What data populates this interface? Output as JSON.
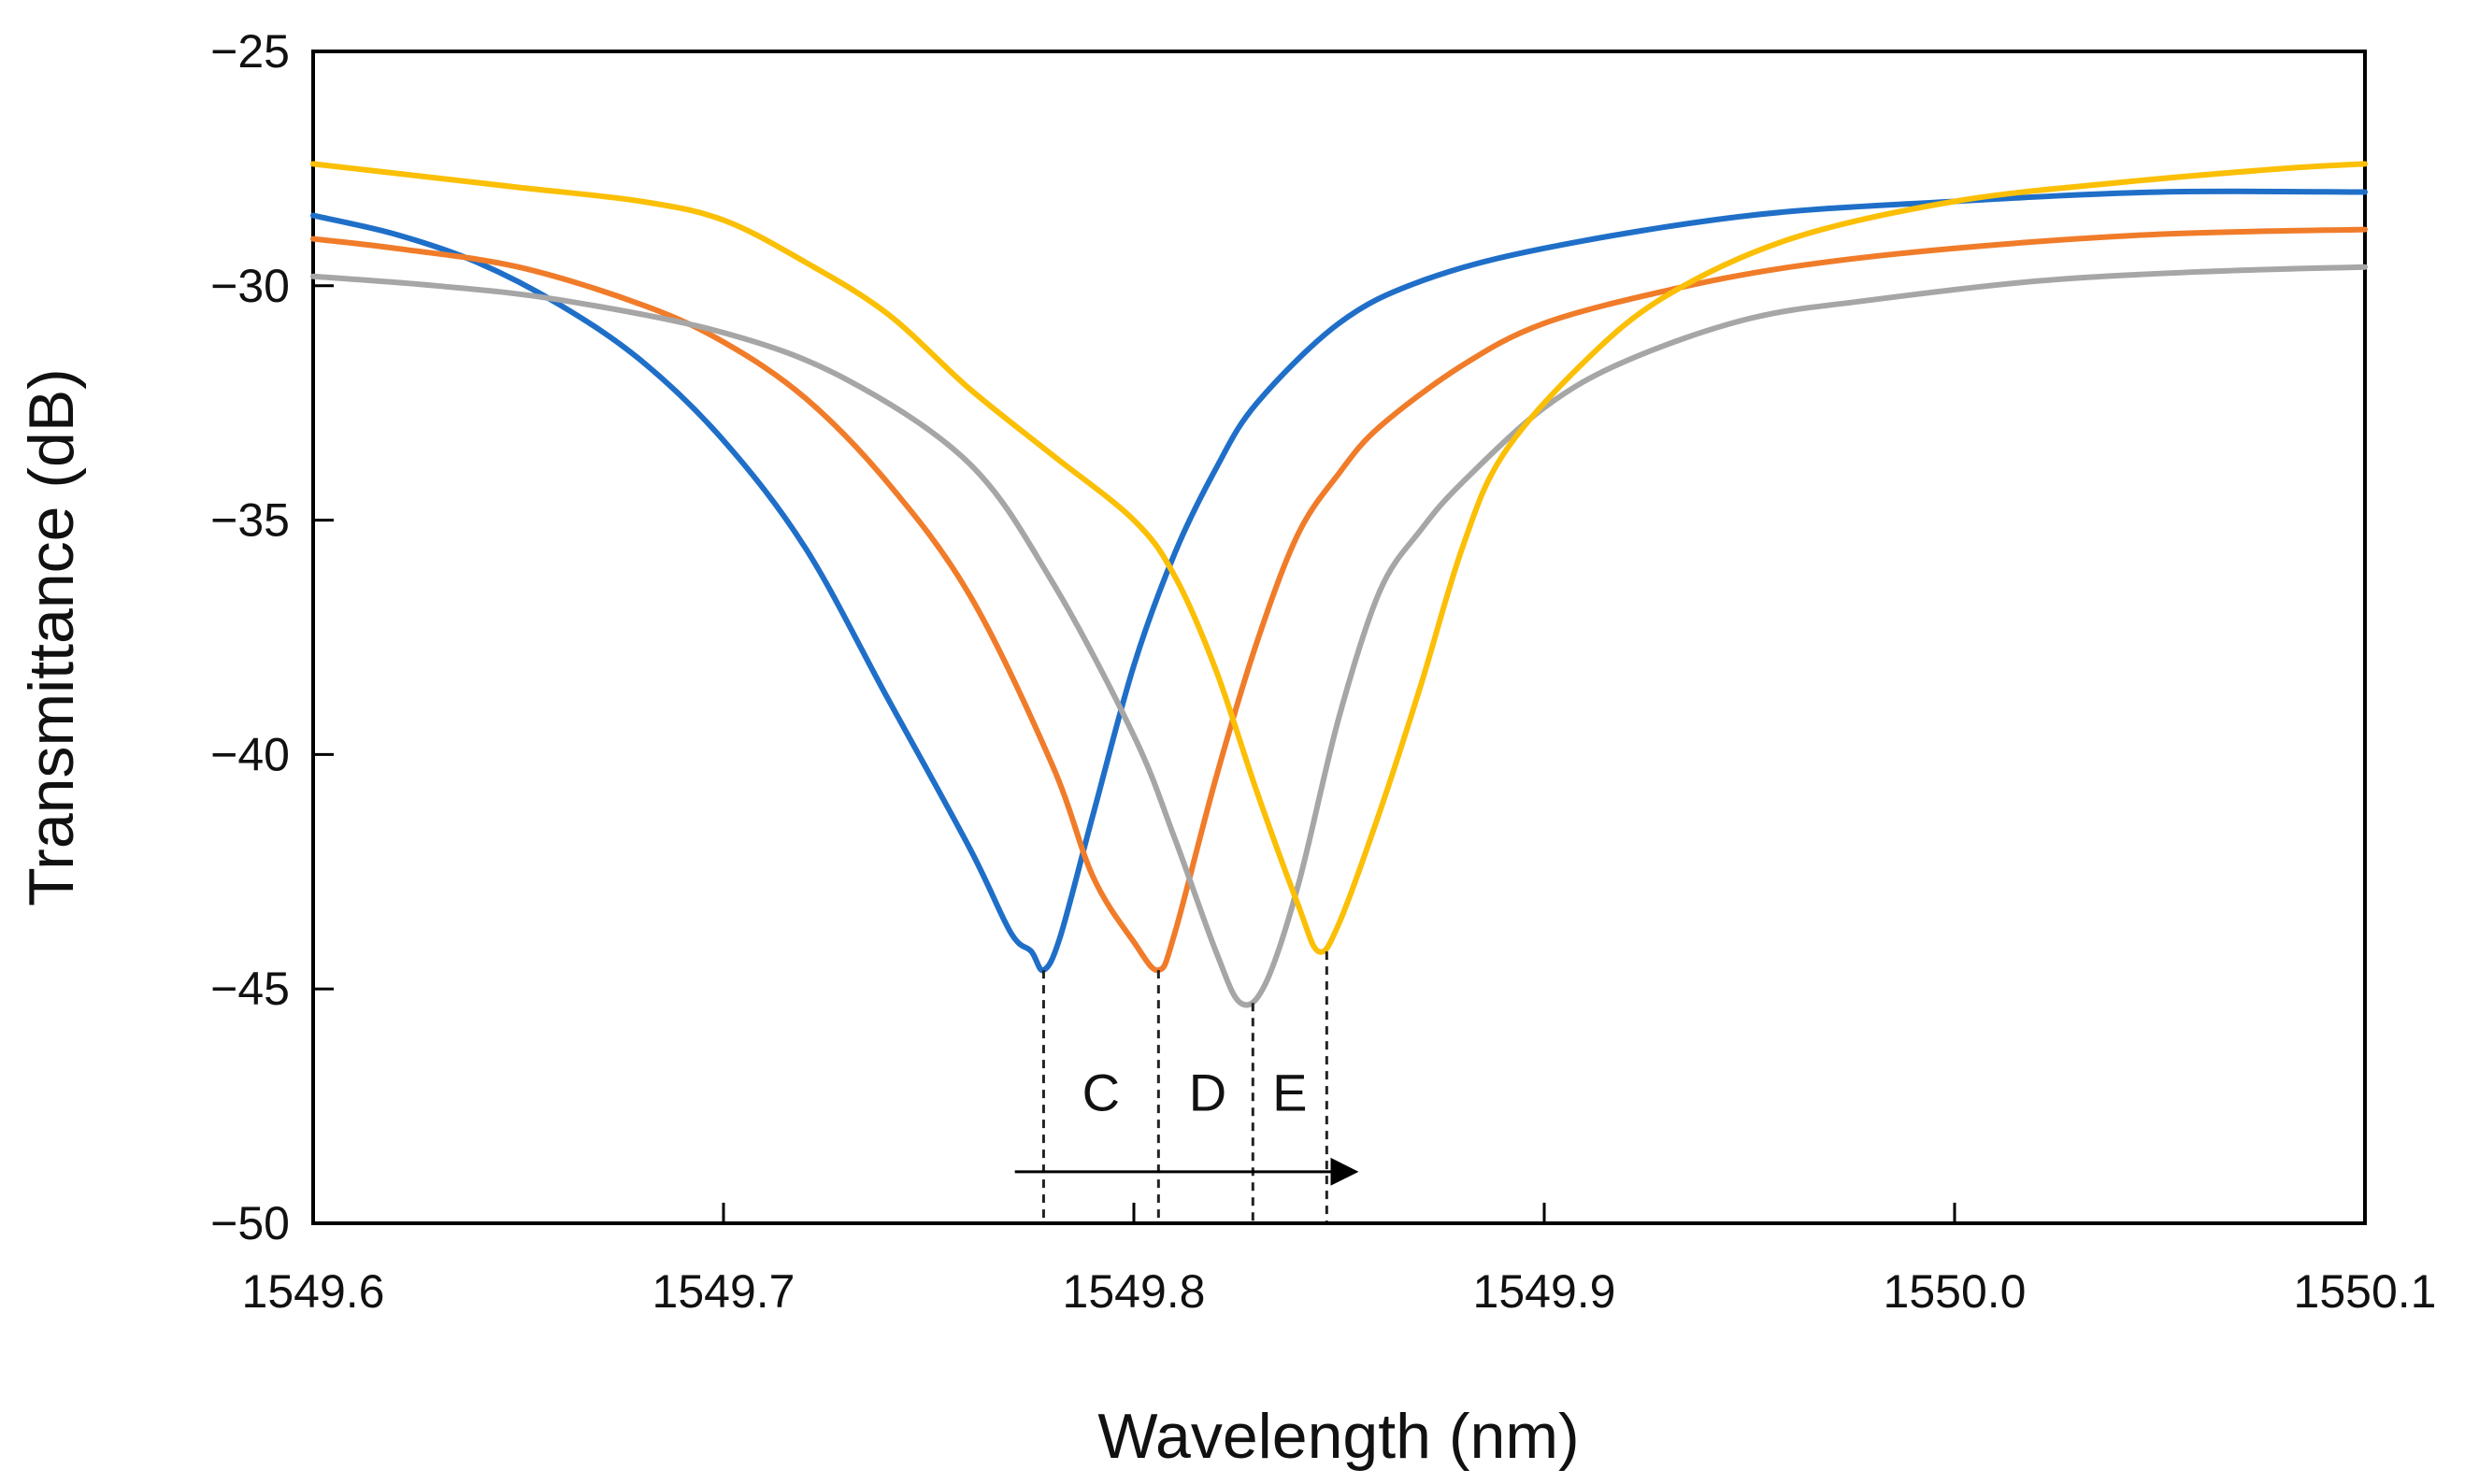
{
  "chart_data": {
    "type": "line",
    "title": "",
    "xlabel": "Wavelength (nm)",
    "ylabel": "Transmittance (dB)",
    "xlim": [
      1549.6,
      1550.1
    ],
    "ylim": [
      -50,
      -25
    ],
    "x_ticks": [
      "1549.6",
      "1549.7",
      "1549.8",
      "1549.9",
      "1550.0",
      "1550.1"
    ],
    "x_tick_values": [
      1549.6,
      1549.7,
      1549.8,
      1549.9,
      1550.0,
      1550.1
    ],
    "y_ticks": [
      "−25",
      "−30",
      "−35",
      "−40",
      "−45",
      "−50"
    ],
    "y_tick_values": [
      -25,
      -30,
      -35,
      -40,
      -45,
      -50
    ],
    "grid": false,
    "legend": "none",
    "series": [
      {
        "color": "#1f6fc8",
        "points": [
          [
            1549.6,
            -28.5
          ],
          [
            1549.62,
            -28.9
          ],
          [
            1549.64,
            -29.5
          ],
          [
            1549.66,
            -30.4
          ],
          [
            1549.68,
            -31.6
          ],
          [
            1549.7,
            -33.3
          ],
          [
            1549.72,
            -35.6
          ],
          [
            1549.74,
            -38.8
          ],
          [
            1549.76,
            -42.0
          ],
          [
            1549.77,
            -43.8
          ],
          [
            1549.775,
            -44.2
          ],
          [
            1549.778,
            -44.6
          ],
          [
            1549.782,
            -43.9
          ],
          [
            1549.79,
            -41.3
          ],
          [
            1549.8,
            -38.1
          ],
          [
            1549.81,
            -35.7
          ],
          [
            1549.82,
            -33.9
          ],
          [
            1549.83,
            -32.5
          ],
          [
            1549.85,
            -30.8
          ],
          [
            1549.87,
            -29.9
          ],
          [
            1549.9,
            -29.2
          ],
          [
            1549.95,
            -28.5
          ],
          [
            1550.0,
            -28.2
          ],
          [
            1550.05,
            -28.0
          ],
          [
            1550.1,
            -28.0
          ]
        ]
      },
      {
        "color": "#f07c2a",
        "points": [
          [
            1549.6,
            -29.0
          ],
          [
            1549.62,
            -29.2
          ],
          [
            1549.65,
            -29.6
          ],
          [
            1549.68,
            -30.4
          ],
          [
            1549.7,
            -31.2
          ],
          [
            1549.72,
            -32.4
          ],
          [
            1549.74,
            -34.2
          ],
          [
            1549.76,
            -36.6
          ],
          [
            1549.78,
            -40.2
          ],
          [
            1549.79,
            -42.6
          ],
          [
            1549.8,
            -44.0
          ],
          [
            1549.806,
            -44.6
          ],
          [
            1549.81,
            -43.8
          ],
          [
            1549.82,
            -40.5
          ],
          [
            1549.83,
            -37.6
          ],
          [
            1549.84,
            -35.3
          ],
          [
            1549.85,
            -34.0
          ],
          [
            1549.86,
            -33.0
          ],
          [
            1549.88,
            -31.7
          ],
          [
            1549.9,
            -30.8
          ],
          [
            1549.93,
            -30.1
          ],
          [
            1549.96,
            -29.6
          ],
          [
            1550.0,
            -29.2
          ],
          [
            1550.05,
            -28.9
          ],
          [
            1550.1,
            -28.8
          ]
        ]
      },
      {
        "color": "#a6a6a6",
        "points": [
          [
            1549.6,
            -29.8
          ],
          [
            1549.63,
            -30.0
          ],
          [
            1549.66,
            -30.3
          ],
          [
            1549.7,
            -31.0
          ],
          [
            1549.73,
            -32.0
          ],
          [
            1549.76,
            -33.8
          ],
          [
            1549.78,
            -36.3
          ],
          [
            1549.8,
            -39.6
          ],
          [
            1549.81,
            -41.8
          ],
          [
            1549.82,
            -44.2
          ],
          [
            1549.826,
            -45.3
          ],
          [
            1549.832,
            -44.9
          ],
          [
            1549.84,
            -42.8
          ],
          [
            1549.85,
            -39.2
          ],
          [
            1549.86,
            -36.5
          ],
          [
            1549.87,
            -35.2
          ],
          [
            1549.88,
            -34.2
          ],
          [
            1549.9,
            -32.6
          ],
          [
            1549.92,
            -31.6
          ],
          [
            1549.95,
            -30.7
          ],
          [
            1549.98,
            -30.3
          ],
          [
            1550.02,
            -29.9
          ],
          [
            1550.06,
            -29.7
          ],
          [
            1550.1,
            -29.6
          ]
        ]
      },
      {
        "color": "#fbbf05",
        "points": [
          [
            1549.6,
            -27.4
          ],
          [
            1549.62,
            -27.6
          ],
          [
            1549.65,
            -27.9
          ],
          [
            1549.68,
            -28.2
          ],
          [
            1549.7,
            -28.6
          ],
          [
            1549.72,
            -29.5
          ],
          [
            1549.74,
            -30.6
          ],
          [
            1549.76,
            -32.2
          ],
          [
            1549.78,
            -33.6
          ],
          [
            1549.8,
            -35.0
          ],
          [
            1549.81,
            -36.2
          ],
          [
            1549.82,
            -38.2
          ],
          [
            1549.83,
            -40.8
          ],
          [
            1549.84,
            -43.2
          ],
          [
            1549.845,
            -44.2
          ],
          [
            1549.85,
            -43.6
          ],
          [
            1549.86,
            -41.2
          ],
          [
            1549.87,
            -38.5
          ],
          [
            1549.88,
            -35.6
          ],
          [
            1549.89,
            -33.6
          ],
          [
            1549.91,
            -31.6
          ],
          [
            1549.93,
            -30.2
          ],
          [
            1549.96,
            -29.0
          ],
          [
            1550.0,
            -28.2
          ],
          [
            1550.04,
            -27.8
          ],
          [
            1550.08,
            -27.5
          ],
          [
            1550.1,
            -27.4
          ]
        ]
      }
    ],
    "dip_markers": [
      {
        "x": 1549.778,
        "y": -44.6
      },
      {
        "x": 1549.806,
        "y": -44.6
      },
      {
        "x": 1549.829,
        "y": -45.3
      },
      {
        "x": 1549.847,
        "y": -44.2
      }
    ],
    "annotations": [
      {
        "text": "C",
        "x": 1549.792,
        "y": -47.2
      },
      {
        "text": "D",
        "x": 1549.818,
        "y": -47.2
      },
      {
        "text": "E",
        "x": 1549.838,
        "y": -47.2
      }
    ],
    "arrow": {
      "from_x": 1549.771,
      "to_x": 1549.855,
      "y": -48.9
    }
  }
}
